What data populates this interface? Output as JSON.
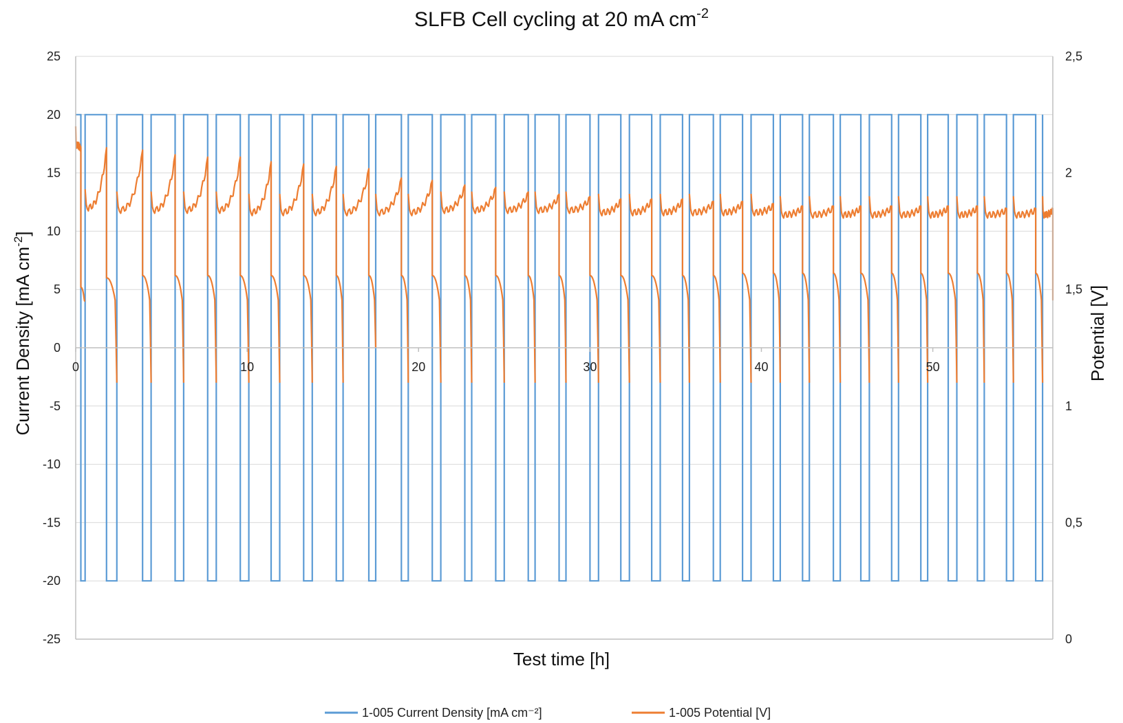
{
  "chart_data": {
    "type": "line",
    "title": "SLFB Cell cycling at 20 mA cm",
    "title_superscript": "-2",
    "xlabel": "Test time [h]",
    "ylabel_left_main": "Current Density [mA cm",
    "ylabel_left_sup": "-2",
    "ylabel_left_end": "]",
    "ylabel_right": "Potential [V]",
    "xlim": [
      0,
      57
    ],
    "ylim_left": [
      -25,
      25
    ],
    "ylim_right": [
      0,
      2.5
    ],
    "x_ticks": [
      "0",
      "10",
      "20",
      "30",
      "40",
      "50"
    ],
    "x_tick_values": [
      0,
      10,
      20,
      30,
      40,
      50
    ],
    "y_left_ticks": [
      "25",
      "20",
      "15",
      "10",
      "5",
      "0",
      "-5",
      "-10",
      "-15",
      "-20",
      "-25"
    ],
    "y_left_tick_values": [
      25,
      20,
      15,
      10,
      5,
      0,
      -5,
      -10,
      -15,
      -20,
      -25
    ],
    "y_right_ticks": [
      "2,5",
      "2",
      "1,5",
      "1",
      "0,5",
      "0"
    ],
    "y_right_tick_values": [
      2.5,
      2,
      1.5,
      1,
      0.5,
      0
    ],
    "grid": "horizontal",
    "legend_position": "bottom",
    "colors": {
      "current": "#5b9bd5",
      "potential": "#ed7d31",
      "grid": "#d9d9d9",
      "axis": "#bfbfbf"
    },
    "series": [
      {
        "name": "1-005 Current Density [mA cm⁻²]",
        "axis": "left",
        "description": "square wave between 20 and -20 mA cm-2; charge/discharge switch times in hours",
        "high_value": 20,
        "low_value": -20,
        "switch_times": [
          0.3,
          0.55,
          1.8,
          2.4,
          3.9,
          4.4,
          5.8,
          6.3,
          7.7,
          8.2,
          9.6,
          10.1,
          11.4,
          11.9,
          13.3,
          13.8,
          15.2,
          15.6,
          17.1,
          17.5,
          19.0,
          19.4,
          20.8,
          21.3,
          22.7,
          23.1,
          24.5,
          25.0,
          26.4,
          26.8,
          28.2,
          28.6,
          30.0,
          30.5,
          31.8,
          32.3,
          33.6,
          34.1,
          35.4,
          35.8,
          37.2,
          37.6,
          38.9,
          39.4,
          40.7,
          41.1,
          42.4,
          42.8,
          44.2,
          44.6,
          45.8,
          46.3,
          47.6,
          48.0,
          49.3,
          49.7,
          50.9,
          51.4,
          52.6,
          53.0,
          54.3,
          54.7,
          56.0,
          56.4
        ],
        "end_time": 56.4
      },
      {
        "name": "1-005 Potential [V]",
        "axis": "right",
        "description": "charge plateau / discharge plateau potentials per cycle",
        "cycles": [
          {
            "t0": 0.0,
            "t1": 0.3,
            "charge_start": 2.12,
            "charge_end": 2.1,
            "dis_start": 1.51,
            "dis_end": 1.45
          },
          {
            "t0": 0.55,
            "t1": 1.8,
            "charge_start": 1.85,
            "charge_end": 2.1,
            "dis_start": 1.55,
            "dis_end": 1.1
          },
          {
            "t0": 2.4,
            "t1": 3.9,
            "charge_start": 1.84,
            "charge_end": 2.09,
            "dis_start": 1.56,
            "dis_end": 1.1
          },
          {
            "t0": 4.4,
            "t1": 5.8,
            "charge_start": 1.84,
            "charge_end": 2.07,
            "dis_start": 1.56,
            "dis_end": 1.1
          },
          {
            "t0": 6.3,
            "t1": 7.7,
            "charge_start": 1.84,
            "charge_end": 2.06,
            "dis_start": 1.56,
            "dis_end": 1.1
          },
          {
            "t0": 8.2,
            "t1": 9.6,
            "charge_start": 1.84,
            "charge_end": 2.06,
            "dis_start": 1.56,
            "dis_end": 1.1
          },
          {
            "t0": 10.1,
            "t1": 11.4,
            "charge_start": 1.83,
            "charge_end": 2.04,
            "dis_start": 1.56,
            "dis_end": 1.1
          },
          {
            "t0": 11.9,
            "t1": 13.3,
            "charge_start": 1.83,
            "charge_end": 2.03,
            "dis_start": 1.56,
            "dis_end": 1.1
          },
          {
            "t0": 13.8,
            "t1": 15.2,
            "charge_start": 1.83,
            "charge_end": 2.02,
            "dis_start": 1.56,
            "dis_end": 1.1
          },
          {
            "t0": 15.6,
            "t1": 17.1,
            "charge_start": 1.83,
            "charge_end": 2.01,
            "dis_start": 1.56,
            "dis_end": 1.25
          },
          {
            "t0": 17.5,
            "t1": 19.0,
            "charge_start": 1.83,
            "charge_end": 1.97,
            "dis_start": 1.56,
            "dis_end": 1.1
          },
          {
            "t0": 19.4,
            "t1": 20.8,
            "charge_start": 1.83,
            "charge_end": 1.96,
            "dis_start": 1.56,
            "dis_end": 1.1
          },
          {
            "t0": 21.3,
            "t1": 22.7,
            "charge_start": 1.84,
            "charge_end": 1.94,
            "dis_start": 1.56,
            "dis_end": 1.1
          },
          {
            "t0": 23.1,
            "t1": 24.5,
            "charge_start": 1.84,
            "charge_end": 1.93,
            "dis_start": 1.56,
            "dis_end": 1.1
          },
          {
            "t0": 25.0,
            "t1": 26.4,
            "charge_start": 1.84,
            "charge_end": 1.91,
            "dis_start": 1.56,
            "dis_end": 1.1
          },
          {
            "t0": 26.8,
            "t1": 28.2,
            "charge_start": 1.84,
            "charge_end": 1.9,
            "dis_start": 1.56,
            "dis_end": 1.1
          },
          {
            "t0": 28.6,
            "t1": 30.0,
            "charge_start": 1.84,
            "charge_end": 1.89,
            "dis_start": 1.56,
            "dis_end": 1.1
          },
          {
            "t0": 30.5,
            "t1": 31.8,
            "charge_start": 1.83,
            "charge_end": 1.88,
            "dis_start": 1.56,
            "dis_end": 1.1
          },
          {
            "t0": 32.3,
            "t1": 33.6,
            "charge_start": 1.83,
            "charge_end": 1.88,
            "dis_start": 1.56,
            "dis_end": 1.1
          },
          {
            "t0": 34.1,
            "t1": 35.4,
            "charge_start": 1.83,
            "charge_end": 1.88,
            "dis_start": 1.56,
            "dis_end": 1.1
          },
          {
            "t0": 35.8,
            "t1": 37.2,
            "charge_start": 1.83,
            "charge_end": 1.87,
            "dis_start": 1.56,
            "dis_end": 1.1
          },
          {
            "t0": 37.6,
            "t1": 38.9,
            "charge_start": 1.83,
            "charge_end": 1.87,
            "dis_start": 1.57,
            "dis_end": 1.1
          },
          {
            "t0": 39.4,
            "t1": 40.7,
            "charge_start": 1.83,
            "charge_end": 1.86,
            "dis_start": 1.57,
            "dis_end": 1.1
          },
          {
            "t0": 41.1,
            "t1": 42.4,
            "charge_start": 1.82,
            "charge_end": 1.85,
            "dis_start": 1.57,
            "dis_end": 1.1
          },
          {
            "t0": 42.8,
            "t1": 44.2,
            "charge_start": 1.82,
            "charge_end": 1.85,
            "dis_start": 1.57,
            "dis_end": 1.1
          },
          {
            "t0": 44.6,
            "t1": 45.8,
            "charge_start": 1.82,
            "charge_end": 1.85,
            "dis_start": 1.57,
            "dis_end": 1.1
          },
          {
            "t0": 46.3,
            "t1": 47.6,
            "charge_start": 1.82,
            "charge_end": 1.85,
            "dis_start": 1.57,
            "dis_end": 1.1
          },
          {
            "t0": 48.0,
            "t1": 49.3,
            "charge_start": 1.82,
            "charge_end": 1.85,
            "dis_start": 1.57,
            "dis_end": 1.1
          },
          {
            "t0": 49.7,
            "t1": 50.9,
            "charge_start": 1.82,
            "charge_end": 1.85,
            "dis_start": 1.57,
            "dis_end": 1.1
          },
          {
            "t0": 51.4,
            "t1": 52.6,
            "charge_start": 1.82,
            "charge_end": 1.85,
            "dis_start": 1.57,
            "dis_end": 1.1
          },
          {
            "t0": 53.0,
            "t1": 54.3,
            "charge_start": 1.82,
            "charge_end": 1.84,
            "dis_start": 1.57,
            "dis_end": 1.1
          },
          {
            "t0": 54.7,
            "t1": 56.0,
            "charge_start": 1.82,
            "charge_end": 1.84,
            "dis_start": 1.57,
            "dis_end": 1.1
          },
          {
            "t0": 56.4,
            "t1": 57.0,
            "charge_start": 1.82,
            "charge_end": 1.84,
            "dis_start": 1.57,
            "dis_end": 1.5
          }
        ]
      }
    ]
  }
}
